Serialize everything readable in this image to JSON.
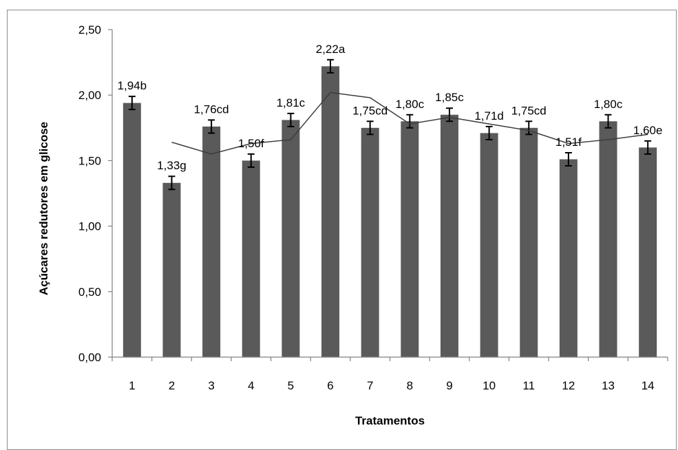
{
  "chart_data": {
    "type": "bar",
    "title": "",
    "xlabel": "Tratamentos",
    "ylabel": "Açúcares redutores em glicose",
    "ylim": [
      0,
      2.5
    ],
    "yticks": [
      "0,00",
      "0,50",
      "1,00",
      "1,50",
      "2,00",
      "2,50"
    ],
    "categories": [
      "1",
      "2",
      "3",
      "4",
      "5",
      "6",
      "7",
      "8",
      "9",
      "10",
      "11",
      "12",
      "13",
      "14"
    ],
    "values": [
      1.94,
      1.33,
      1.76,
      1.5,
      1.81,
      2.22,
      1.75,
      1.8,
      1.85,
      1.71,
      1.75,
      1.51,
      1.8,
      1.6
    ],
    "error": [
      0.05,
      0.05,
      0.05,
      0.05,
      0.05,
      0.05,
      0.05,
      0.05,
      0.05,
      0.05,
      0.05,
      0.05,
      0.05,
      0.05
    ],
    "data_labels": [
      "1,94b",
      "1,33g",
      "1,76cd",
      "1,50f",
      "1,81c",
      "2,22a",
      "1,75cd",
      "1,80c",
      "1,85c",
      "1,71d",
      "1,75cd",
      "1,51f",
      "1,80c",
      "1,60e"
    ],
    "trendline": {
      "type": "moving_average",
      "period": 2,
      "x_start_category": "2",
      "values": [
        1.64,
        1.55,
        1.63,
        1.66,
        2.02,
        1.98,
        1.78,
        1.83,
        1.78,
        1.73,
        1.63,
        1.66,
        1.7
      ]
    },
    "bar_color": "#5a5a5a",
    "line_color": "#3c3c3c",
    "grid": false,
    "legend": "none"
  }
}
